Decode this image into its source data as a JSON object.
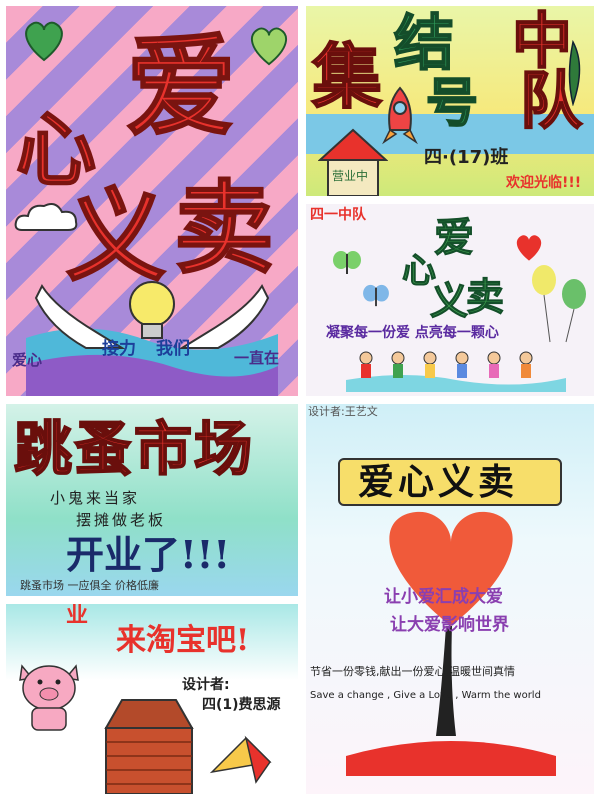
{
  "panels": {
    "p1": {
      "title_chars": [
        "爱",
        "心",
        "义",
        "卖"
      ],
      "bottom_words": [
        "爱心",
        "接力",
        "我们",
        "一直在"
      ]
    },
    "p2": {
      "title_chars": [
        "集",
        "结",
        "号",
        "中",
        "队"
      ],
      "class_label": "四·(17)班",
      "house_label": "营业中",
      "bottom_text": "欢迎光临!!!"
    },
    "p3": {
      "top_label": "四一中队",
      "title_chars": [
        "爱",
        "心",
        "义",
        "卖"
      ],
      "slogan": "凝聚每一份爱 点亮每一颗心"
    },
    "p4": {
      "title": "跳蚤市场",
      "line1": "小鬼来当家",
      "line2": "摆摊做老板",
      "opening": "开业了!!!",
      "footer": "跳蚤市场 一应俱全 价格低廉"
    },
    "p5": {
      "designer_top": "设计者:王艺文",
      "banner": "爱心义卖",
      "slogan1": "让小爱汇成大爱",
      "slogan2": "让大爱影响世界",
      "line_cn": "节省一份零钱,献出一份爱心,温暖世间真情",
      "line_en": "Save a change ,  Give a Love ,   Warm the world"
    },
    "p6": {
      "top_fragment": "业",
      "invite": "来淘宝吧!",
      "designer_label": "设计者:",
      "designer_name": "四(1)费思源"
    }
  },
  "colors": {
    "red": "#e8322c",
    "pink_bg": "#f6a4c7",
    "stripe": "#a58ad8",
    "green": "#3f9a4a",
    "yellow": "#f7e45a",
    "teal": "#55c8d8",
    "purple": "#8a3fb0"
  }
}
